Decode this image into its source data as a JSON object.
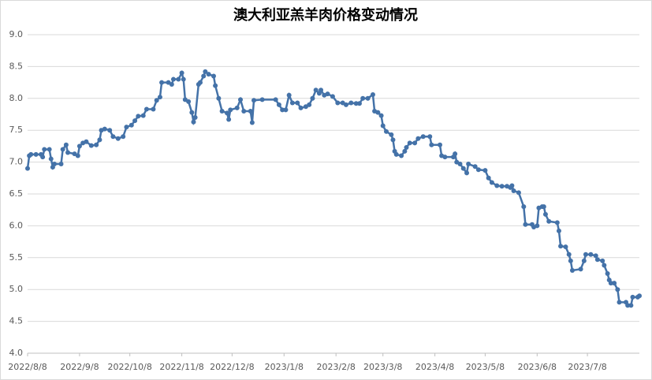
{
  "chart_data": {
    "type": "line",
    "title": "澳大利亚羔羊肉价格变动情况",
    "x": [
      "2022/8/8",
      "2022/8/9",
      "2022/8/10",
      "2022/8/13",
      "2022/8/16",
      "2022/8/17",
      "2022/8/18",
      "2022/8/21",
      "2022/8/22",
      "2022/8/23",
      "2022/8/24",
      "2022/8/28",
      "2022/8/29",
      "2022/8/31",
      "2022/9/1",
      "2022/9/5",
      "2022/9/7",
      "2022/9/8",
      "2022/9/10",
      "2022/9/12",
      "2022/9/15",
      "2022/9/18",
      "2022/9/20",
      "2022/9/21",
      "2022/9/23",
      "2022/9/26",
      "2022/9/28",
      "2022/10/1",
      "2022/10/4",
      "2022/10/6",
      "2022/10/9",
      "2022/10/11",
      "2022/10/13",
      "2022/10/16",
      "2022/10/18",
      "2022/10/22",
      "2022/10/24",
      "2022/10/26",
      "2022/10/27",
      "2022/10/31",
      "2022/11/2",
      "2022/11/3",
      "2022/11/6",
      "2022/11/8",
      "2022/11/9",
      "2022/11/10",
      "2022/11/12",
      "2022/11/14",
      "2022/11/15",
      "2022/11/16",
      "2022/11/18",
      "2022/11/19",
      "2022/11/21",
      "2022/11/22",
      "2022/11/24",
      "2022/11/27",
      "2022/11/28",
      "2022/11/30",
      "2022/12/2",
      "2022/12/5",
      "2022/12/6",
      "2022/12/7",
      "2022/12/11",
      "2022/12/13",
      "2022/12/15",
      "2022/12/19",
      "2022/12/20",
      "2022/12/21",
      "2022/12/26",
      "2023/1/3",
      "2023/1/5",
      "2023/1/7",
      "2023/1/9",
      "2023/1/11",
      "2023/1/13",
      "2023/1/16",
      "2023/1/18",
      "2023/1/21",
      "2023/1/23",
      "2023/1/25",
      "2023/1/27",
      "2023/1/29",
      "2023/1/30",
      "2023/2/1",
      "2023/2/3",
      "2023/2/6",
      "2023/2/9",
      "2023/2/12",
      "2023/2/14",
      "2023/2/17",
      "2023/2/20",
      "2023/2/22",
      "2023/2/24",
      "2023/2/27",
      "2023/3/2",
      "2023/3/3",
      "2023/3/5",
      "2023/3/7",
      "2023/3/8",
      "2023/3/10",
      "2023/3/13",
      "2023/3/14",
      "2023/3/15",
      "2023/3/16",
      "2023/3/19",
      "2023/3/21",
      "2023/3/22",
      "2023/3/24",
      "2023/3/27",
      "2023/3/29",
      "2023/4/1",
      "2023/4/5",
      "2023/4/6",
      "2023/4/11",
      "2023/4/12",
      "2023/4/14",
      "2023/4/19",
      "2023/4/20",
      "2023/4/21",
      "2023/4/23",
      "2023/4/25",
      "2023/4/27",
      "2023/4/28",
      "2023/5/2",
      "2023/5/4",
      "2023/5/8",
      "2023/5/10",
      "2023/5/12",
      "2023/5/15",
      "2023/5/18",
      "2023/5/21",
      "2023/5/23",
      "2023/5/24",
      "2023/5/25",
      "2023/5/28",
      "2023/5/31",
      "2023/6/1",
      "2023/6/5",
      "2023/6/6",
      "2023/6/8",
      "2023/6/9",
      "2023/6/11",
      "2023/6/12",
      "2023/6/13",
      "2023/6/15",
      "2023/6/20",
      "2023/6/21",
      "2023/6/22",
      "2023/6/25",
      "2023/6/27",
      "2023/6/28",
      "2023/6/29",
      "2023/7/4",
      "2023/7/6",
      "2023/7/7",
      "2023/7/10",
      "2023/7/13",
      "2023/7/14",
      "2023/7/17",
      "2023/7/18",
      "2023/7/20",
      "2023/7/21",
      "2023/7/22",
      "2023/7/24",
      "2023/7/26",
      "2023/7/27",
      "2023/7/31",
      "2023/8/1",
      "2023/8/3",
      "2023/8/4",
      "2023/8/7",
      "2023/8/8"
    ],
    "values": [
      6.9,
      7.1,
      7.12,
      7.12,
      7.12,
      7.08,
      7.2,
      7.2,
      7.05,
      6.92,
      6.97,
      6.97,
      7.2,
      7.27,
      7.15,
      7.13,
      7.1,
      7.25,
      7.3,
      7.32,
      7.26,
      7.27,
      7.35,
      7.5,
      7.52,
      7.5,
      7.4,
      7.37,
      7.4,
      7.55,
      7.58,
      7.65,
      7.72,
      7.73,
      7.83,
      7.83,
      7.97,
      8.02,
      8.25,
      8.25,
      8.22,
      8.3,
      8.3,
      8.4,
      8.3,
      7.98,
      7.95,
      7.78,
      7.63,
      7.7,
      8.22,
      8.25,
      8.35,
      8.42,
      8.38,
      8.35,
      8.2,
      8.0,
      7.8,
      7.77,
      7.67,
      7.82,
      7.85,
      7.98,
      7.8,
      7.8,
      7.62,
      7.97,
      7.98,
      7.98,
      7.9,
      7.82,
      7.82,
      8.05,
      7.93,
      7.93,
      7.85,
      7.87,
      7.9,
      8.0,
      8.13,
      8.08,
      8.13,
      8.05,
      8.07,
      8.03,
      7.93,
      7.93,
      7.9,
      7.93,
      7.92,
      7.92,
      8.0,
      8.0,
      8.06,
      7.8,
      7.78,
      7.73,
      7.57,
      7.48,
      7.43,
      7.35,
      7.17,
      7.12,
      7.1,
      7.17,
      7.23,
      7.3,
      7.3,
      7.37,
      7.4,
      7.4,
      7.27,
      7.27,
      7.1,
      7.08,
      7.08,
      7.13,
      7.0,
      6.97,
      6.9,
      6.83,
      6.97,
      6.93,
      6.88,
      6.87,
      6.75,
      6.68,
      6.63,
      6.62,
      6.62,
      6.6,
      6.63,
      6.55,
      6.52,
      6.3,
      6.02,
      6.02,
      5.98,
      6.0,
      6.28,
      6.3,
      6.3,
      6.18,
      6.07,
      6.05,
      5.92,
      5.68,
      5.67,
      5.55,
      5.45,
      5.3,
      5.32,
      5.45,
      5.55,
      5.55,
      5.53,
      5.47,
      5.45,
      5.38,
      5.25,
      5.15,
      5.1,
      5.1,
      5.0,
      4.8,
      4.8,
      4.75,
      4.75,
      4.88,
      4.88,
      4.9
    ],
    "color": "#4472a8",
    "xlim": [
      "2022/8/8",
      "2023/8/8"
    ],
    "xticks": [
      "2022/8/8",
      "2022/9/8",
      "2022/10/8",
      "2022/11/8",
      "2022/12/8",
      "2023/1/8",
      "2023/2/8",
      "2023/3/8",
      "2023/4/8",
      "2023/5/8",
      "2023/6/8",
      "2023/7/8"
    ],
    "ylim": [
      4.0,
      9.0
    ],
    "yticks": [
      {
        "value": 4,
        "label": "4.0"
      },
      4.5,
      {
        "value": 5,
        "label": "5.0"
      },
      5.5,
      {
        "value": 6,
        "label": "6.0"
      },
      6.5,
      {
        "value": 7,
        "label": "7.0"
      },
      7.5,
      {
        "value": 8,
        "label": "8.0"
      },
      8.5,
      {
        "value": 9,
        "label": "9.0"
      }
    ],
    "grid": true
  }
}
